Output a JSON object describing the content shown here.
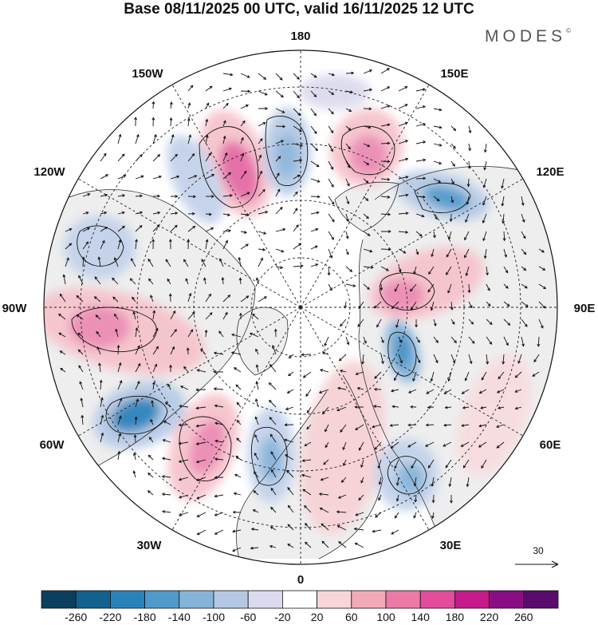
{
  "title": "Base 08/11/2025 00 UTC, valid 16/11/2025 12 UTC",
  "brand": {
    "name": "MODES",
    "mark": "©"
  },
  "longitude_labels": [
    "180",
    "150E",
    "120E",
    "90E",
    "60E",
    "30E",
    "0",
    "30W",
    "60W",
    "90W",
    "120W",
    "150W"
  ],
  "reference_vector": {
    "value": "30"
  },
  "colorbar": {
    "ticks": [
      "-260",
      "-220",
      "-180",
      "-140",
      "-100",
      "-60",
      "-20",
      "20",
      "60",
      "100",
      "140",
      "180",
      "220",
      "260"
    ],
    "colors": [
      "#0b3f5e",
      "#13618f",
      "#2a82bb",
      "#4f9acb",
      "#86b4d9",
      "#b4c8e4",
      "#dcdaee",
      "#ffffff",
      "#f8d6d8",
      "#f2aab8",
      "#ec7aa6",
      "#e24c9b",
      "#c41a8a",
      "#8a0e83",
      "#5a0b6e"
    ]
  },
  "colors": {
    "land": "#eeeeee",
    "coast": "#333333",
    "grid": "#222222",
    "arrow": "#111111"
  }
}
